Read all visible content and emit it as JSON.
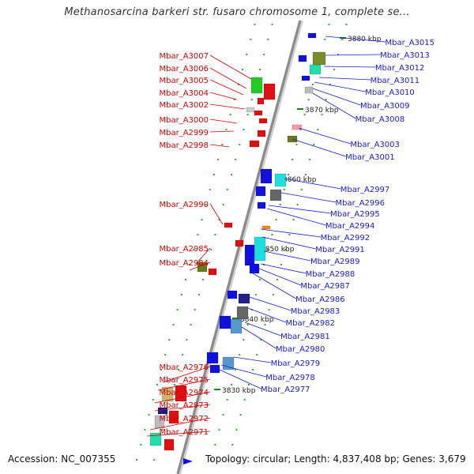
{
  "title": "Methanosarcina barkeri str. fusaro chromosome 1, complete se...",
  "accession": "Accession: NC_007355",
  "topology": "Topology: circular; Length: 4,837,408 bp; Genes: 3,679",
  "colors": {
    "backbone": "#8a8a8a",
    "label_reverse": "#d40000",
    "label_forward": "#1a1acc",
    "tick": "#118811",
    "dot": "#33aa33"
  },
  "kbp_ticks": [
    "3880 kbp",
    "3870 kbp",
    "3860 kbp",
    "3850 kbp",
    "3840 kbp",
    "3830 kbp"
  ],
  "reverse_labels": [
    "Mbar_A3007",
    "Mbar_A3006",
    "Mbar_A3005",
    "Mbar_A3004",
    "Mbar_A3002",
    "Mbar_A3000",
    "Mbar_A2999",
    "Mbar_A2998",
    "Mbar_A2990",
    "Mbar_A2985",
    "Mbar_A2984",
    "Mbar_A2976",
    "Mbar_A2975",
    "Mbar_A2974",
    "Mbar_A2973",
    "Mbar_A2972",
    "Mbar_A2971"
  ],
  "forward_labels": [
    "Mbar_A3015",
    "Mbar_A3013",
    "Mbar_A3012",
    "Mbar_A3011",
    "Mbar_A3010",
    "Mbar_A3009",
    "Mbar_A3008",
    "Mbar_A3003",
    "Mbar_A3001",
    "Mbar_A2997",
    "Mbar_A2996",
    "Mbar_A2995",
    "Mbar_A2994",
    "Mbar_A2992",
    "Mbar_A2991",
    "Mbar_A2989",
    "Mbar_A2988",
    "Mbar_A2987",
    "Mbar_A2986",
    "Mbar_A2983",
    "Mbar_A2982",
    "Mbar_A2981",
    "Mbar_A2980",
    "Mbar_A2979",
    "Mbar_A2978",
    "Mbar_A2977"
  ]
}
